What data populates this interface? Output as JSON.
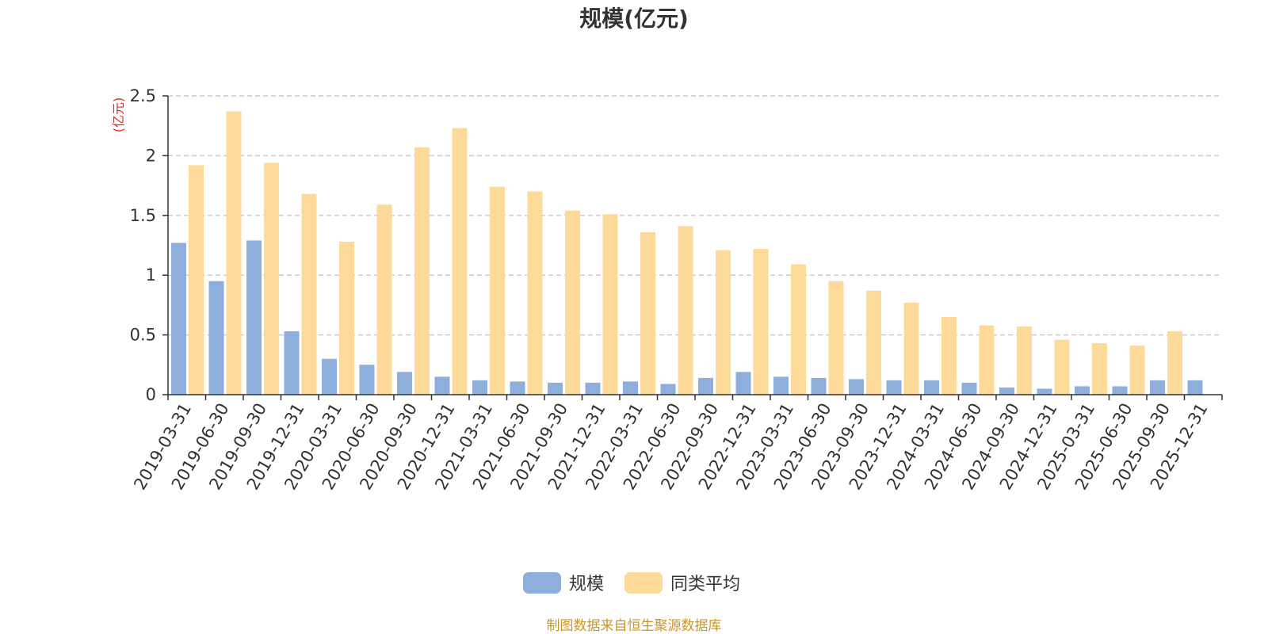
{
  "chart_data": {
    "type": "bar",
    "title": "规模(亿元)",
    "ylabel": "(亿元)",
    "xlabel": "",
    "ylim": [
      0,
      2.5
    ],
    "yticks": [
      "0",
      "0.5",
      "1",
      "1.5",
      "2",
      "2.5"
    ],
    "ytick_values": [
      0,
      0.5,
      1,
      1.5,
      2,
      2.5
    ],
    "grid": "horizontal dashed",
    "legend_position": "bottom-center",
    "categories": [
      "2019-03-31",
      "2019-06-30",
      "2019-09-30",
      "2019-12-31",
      "2020-03-31",
      "2020-06-30",
      "2020-09-30",
      "2020-12-31",
      "2021-03-31",
      "2021-06-30",
      "2021-09-30",
      "2021-12-31",
      "2022-03-31",
      "2022-06-30",
      "2022-09-30",
      "2022-12-31",
      "2023-03-31",
      "2023-06-30",
      "2023-09-30",
      "2023-12-31",
      "2024-03-31",
      "2024-06-30",
      "2024-09-30",
      "2024-12-31",
      "2025-03-31",
      "2025-06-30",
      "2025-09-30",
      "2025-12-31"
    ],
    "series": [
      {
        "name": "规模",
        "color": "#8eaedc",
        "values": [
          1.27,
          0.95,
          1.29,
          0.53,
          0.3,
          0.25,
          0.19,
          0.15,
          0.12,
          0.11,
          0.1,
          0.1,
          0.11,
          0.09,
          0.14,
          0.19,
          0.15,
          0.14,
          0.13,
          0.12,
          0.12,
          0.1,
          0.06,
          0.05,
          0.07,
          0.07,
          0.12,
          0.12
        ]
      },
      {
        "name": "同类平均",
        "color": "#fdd99a",
        "values": [
          1.92,
          2.37,
          1.94,
          1.68,
          1.28,
          1.59,
          2.07,
          2.23,
          1.74,
          1.7,
          1.54,
          1.51,
          1.36,
          1.41,
          1.21,
          1.22,
          1.09,
          0.95,
          0.87,
          0.77,
          0.65,
          0.58,
          0.57,
          0.46,
          0.43,
          0.41,
          0.53,
          null
        ]
      }
    ],
    "source_text": "制图数据来自恒生聚源数据库"
  }
}
